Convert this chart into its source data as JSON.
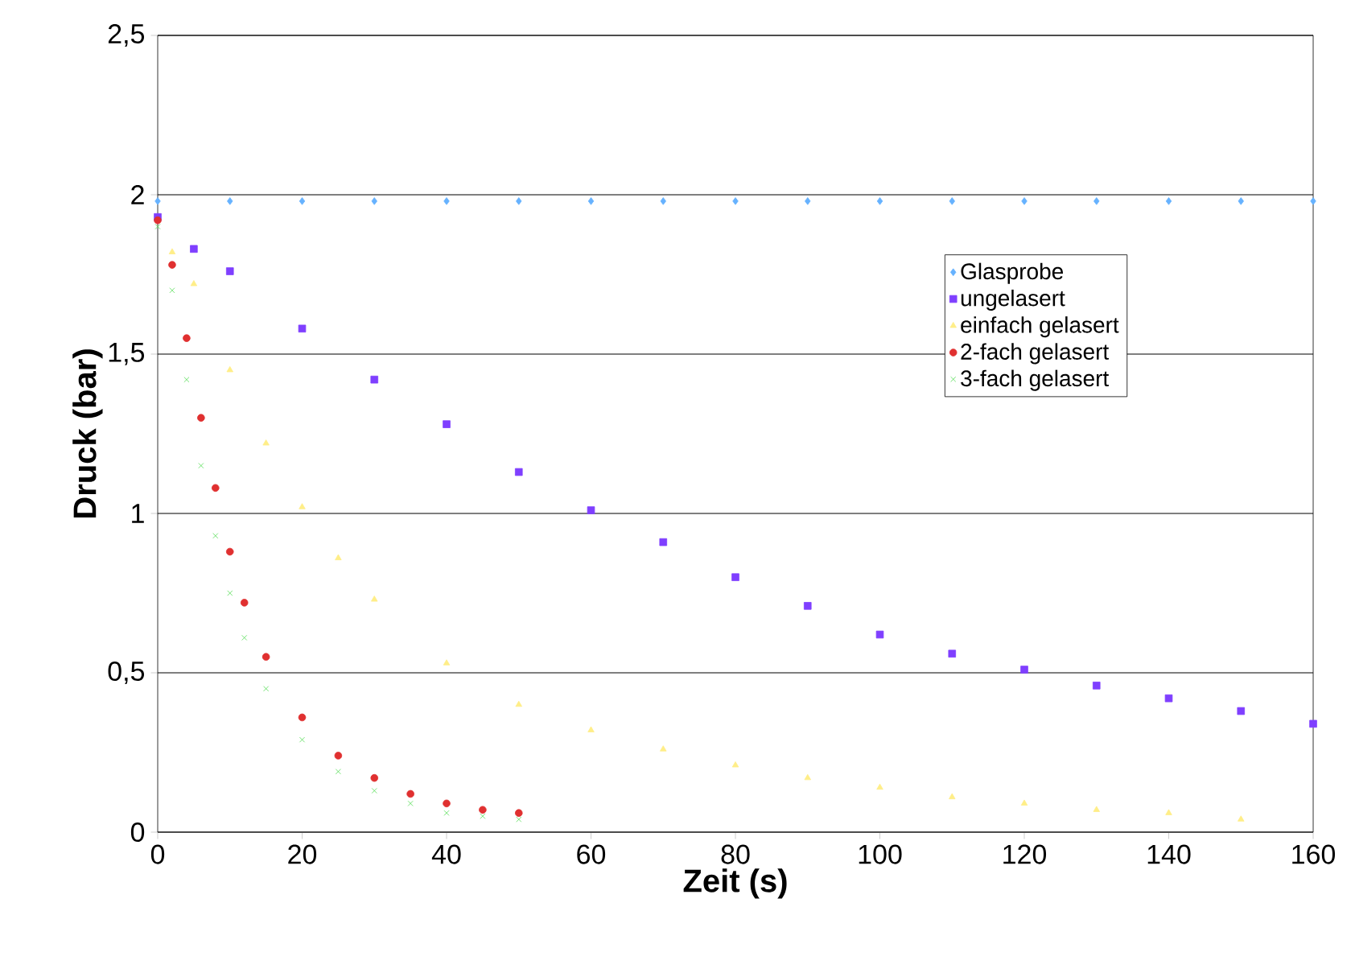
{
  "chart_data": {
    "type": "scatter",
    "xlabel": "Zeit (s)",
    "ylabel": "Druck (bar)",
    "xlim": [
      0,
      160
    ],
    "xticks": [
      0,
      20,
      40,
      60,
      80,
      100,
      120,
      140,
      160
    ],
    "ylim": [
      0,
      2.5
    ],
    "yticks": [
      0,
      {
        "value": 0.5,
        "label": "0,5"
      },
      1,
      {
        "value": 1.5,
        "label": "1,5"
      },
      2,
      {
        "value": 2.5,
        "label": "2,5"
      }
    ],
    "grid": "y",
    "legend": "right",
    "series": [
      {
        "name": "Glasprobe",
        "color": "#66b2ff",
        "marker": "diamond",
        "x": [
          0,
          10,
          20,
          30,
          40,
          50,
          60,
          70,
          80,
          90,
          100,
          110,
          120,
          130,
          140,
          150,
          160
        ],
        "values": [
          1.98,
          1.98,
          1.98,
          1.98,
          1.98,
          1.98,
          1.98,
          1.98,
          1.98,
          1.98,
          1.98,
          1.98,
          1.98,
          1.98,
          1.98,
          1.98,
          1.98
        ]
      },
      {
        "name": "ungelasert",
        "color": "#7f3fff",
        "marker": "square",
        "x": [
          0,
          5,
          10,
          20,
          30,
          40,
          50,
          60,
          70,
          80,
          90,
          100,
          110,
          120,
          130,
          140,
          150,
          160
        ],
        "values": [
          1.93,
          1.83,
          1.76,
          1.58,
          1.42,
          1.28,
          1.13,
          1.01,
          0.91,
          0.8,
          0.71,
          0.62,
          0.56,
          0.51,
          0.46,
          0.42,
          0.38,
          0.34
        ]
      },
      {
        "name": "einfach gelasert",
        "color": "#ffee88",
        "marker": "triangle",
        "x": [
          2,
          5,
          10,
          15,
          20,
          25,
          30,
          40,
          50,
          60,
          70,
          80,
          90,
          100,
          110,
          120,
          130,
          140,
          150
        ],
        "values": [
          1.82,
          1.72,
          1.45,
          1.22,
          1.02,
          0.86,
          0.73,
          0.53,
          0.4,
          0.32,
          0.26,
          0.21,
          0.17,
          0.14,
          0.11,
          0.09,
          0.07,
          0.06,
          0.04
        ]
      },
      {
        "name": "2-fach gelasert",
        "color": "#e03030",
        "marker": "circle",
        "x": [
          0,
          2,
          4,
          6,
          8,
          10,
          12,
          15,
          20,
          25,
          30,
          35,
          40,
          45,
          50
        ],
        "values": [
          1.92,
          1.78,
          1.55,
          1.3,
          1.08,
          0.88,
          0.72,
          0.55,
          0.36,
          0.24,
          0.17,
          0.12,
          0.09,
          0.07,
          0.06
        ]
      },
      {
        "name": "3-fach gelasert",
        "color": "#55dd55",
        "marker": "cross",
        "x": [
          0,
          2,
          4,
          6,
          8,
          10,
          12,
          15,
          20,
          25,
          30,
          35,
          40,
          45,
          50
        ],
        "values": [
          1.9,
          1.7,
          1.42,
          1.15,
          0.93,
          0.75,
          0.61,
          0.45,
          0.29,
          0.19,
          0.13,
          0.09,
          0.06,
          0.05,
          0.04
        ]
      }
    ]
  }
}
